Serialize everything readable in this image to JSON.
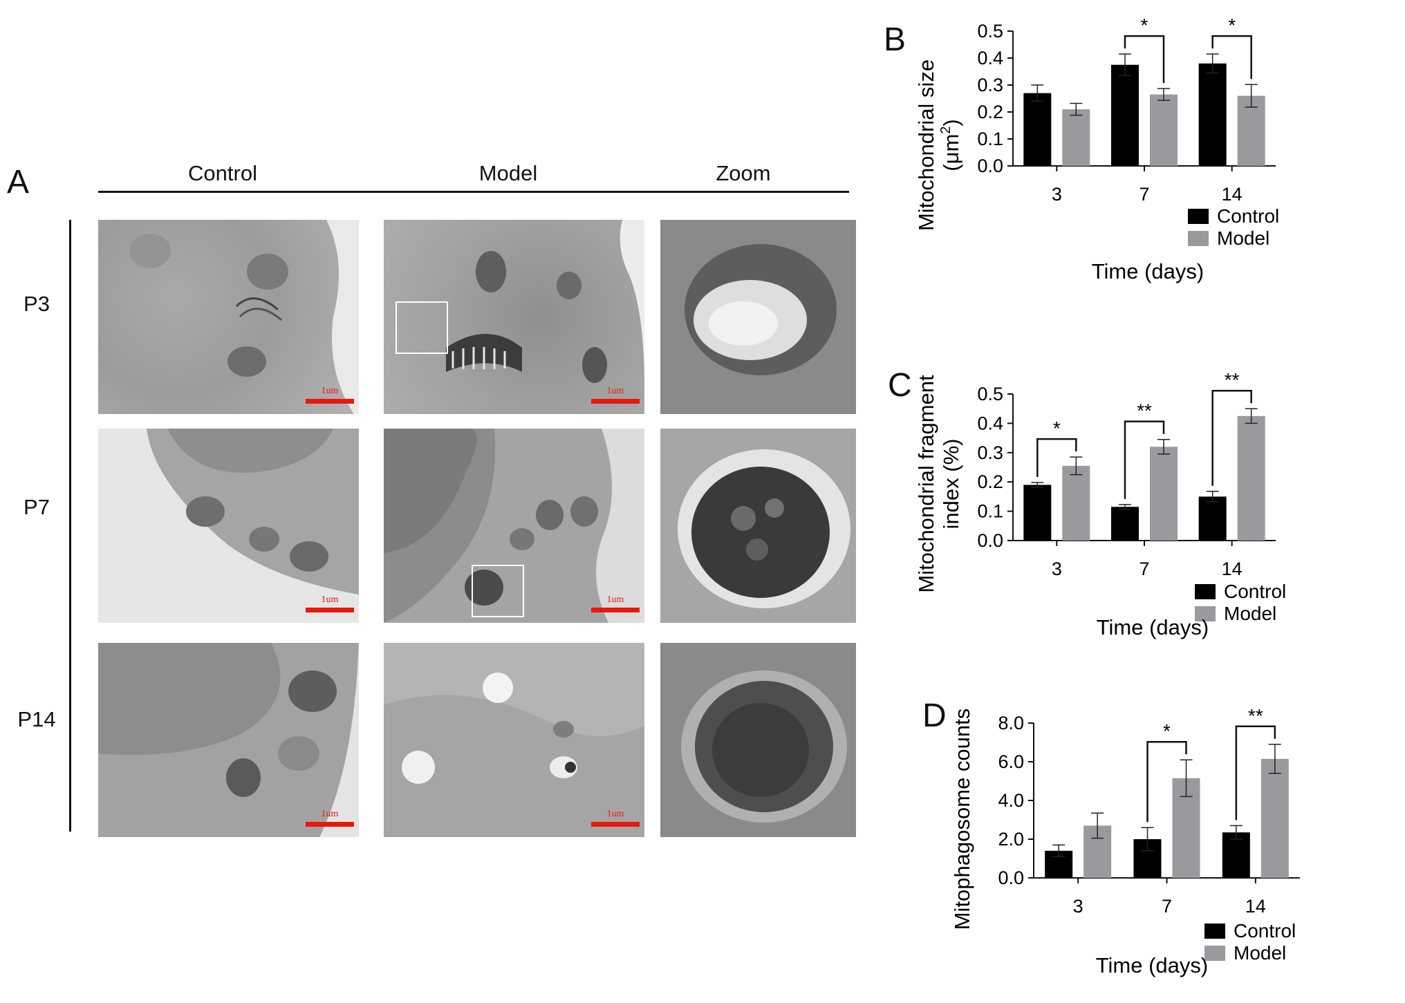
{
  "panel_a": {
    "letter": "A",
    "columns": [
      "Control",
      "Model",
      "Zoom"
    ],
    "rows": [
      "P3",
      "P7",
      "P14"
    ],
    "scale_label": "1um"
  },
  "chart_data": [
    {
      "type": "bar",
      "panel": "B",
      "ylabel_line1": "Mitochondrial size",
      "ylabel_line2": "(μm",
      "ylabel_sup": "2",
      "ylabel_close": ")",
      "xlabel": "Time (days)",
      "categories": [
        "3",
        "7",
        "14"
      ],
      "series": [
        {
          "name": "Control",
          "values": [
            0.27,
            0.375,
            0.38
          ],
          "errors": [
            0.03,
            0.04,
            0.035
          ],
          "color": "#000000"
        },
        {
          "name": "Model",
          "values": [
            0.21,
            0.265,
            0.26
          ],
          "errors": [
            0.022,
            0.022,
            0.042
          ],
          "color": "#9a9a9e"
        }
      ],
      "ylim": [
        0,
        0.5
      ],
      "yticks": [
        "0.0",
        "0.1",
        "0.2",
        "0.3",
        "0.4",
        "0.5"
      ],
      "significance": [
        {
          "category": "7",
          "label": "*"
        },
        {
          "category": "14",
          "label": "*"
        }
      ],
      "legend_position": "bottom-right"
    },
    {
      "type": "bar",
      "panel": "C",
      "ylabel_line1": "Mitochondrial fragment",
      "ylabel_line2": "index (%)",
      "xlabel": "Time (days)",
      "categories": [
        "3",
        "7",
        "14"
      ],
      "series": [
        {
          "name": "Control",
          "values": [
            0.19,
            0.115,
            0.15
          ],
          "errors": [
            0.008,
            0.008,
            0.018
          ],
          "color": "#000000"
        },
        {
          "name": "Model",
          "values": [
            0.255,
            0.32,
            0.425
          ],
          "errors": [
            0.03,
            0.025,
            0.025
          ],
          "color": "#9a9a9e"
        }
      ],
      "ylim": [
        0,
        0.5
      ],
      "yticks": [
        "0.0",
        "0.1",
        "0.2",
        "0.3",
        "0.4",
        "0.5"
      ],
      "significance": [
        {
          "category": "3",
          "label": "*"
        },
        {
          "category": "7",
          "label": "**"
        },
        {
          "category": "14",
          "label": "**"
        }
      ],
      "legend_position": "bottom-right"
    },
    {
      "type": "bar",
      "panel": "D",
      "ylabel_line1": "Mitophagosome counts",
      "xlabel": "Time (days)",
      "categories": [
        "3",
        "7",
        "14"
      ],
      "series": [
        {
          "name": "Control",
          "values": [
            1.4,
            2.0,
            2.35
          ],
          "errors": [
            0.3,
            0.6,
            0.35
          ],
          "color": "#000000"
        },
        {
          "name": "Model",
          "values": [
            2.7,
            5.15,
            6.15
          ],
          "errors": [
            0.65,
            0.95,
            0.75
          ],
          "color": "#9a9a9e"
        }
      ],
      "ylim": [
        0,
        8.0
      ],
      "yticks": [
        "0.0",
        "2.0",
        "4.0",
        "6.0",
        "8.0"
      ],
      "significance": [
        {
          "category": "7",
          "label": "*"
        },
        {
          "category": "14",
          "label": "**"
        }
      ],
      "legend_position": "bottom-right"
    }
  ]
}
